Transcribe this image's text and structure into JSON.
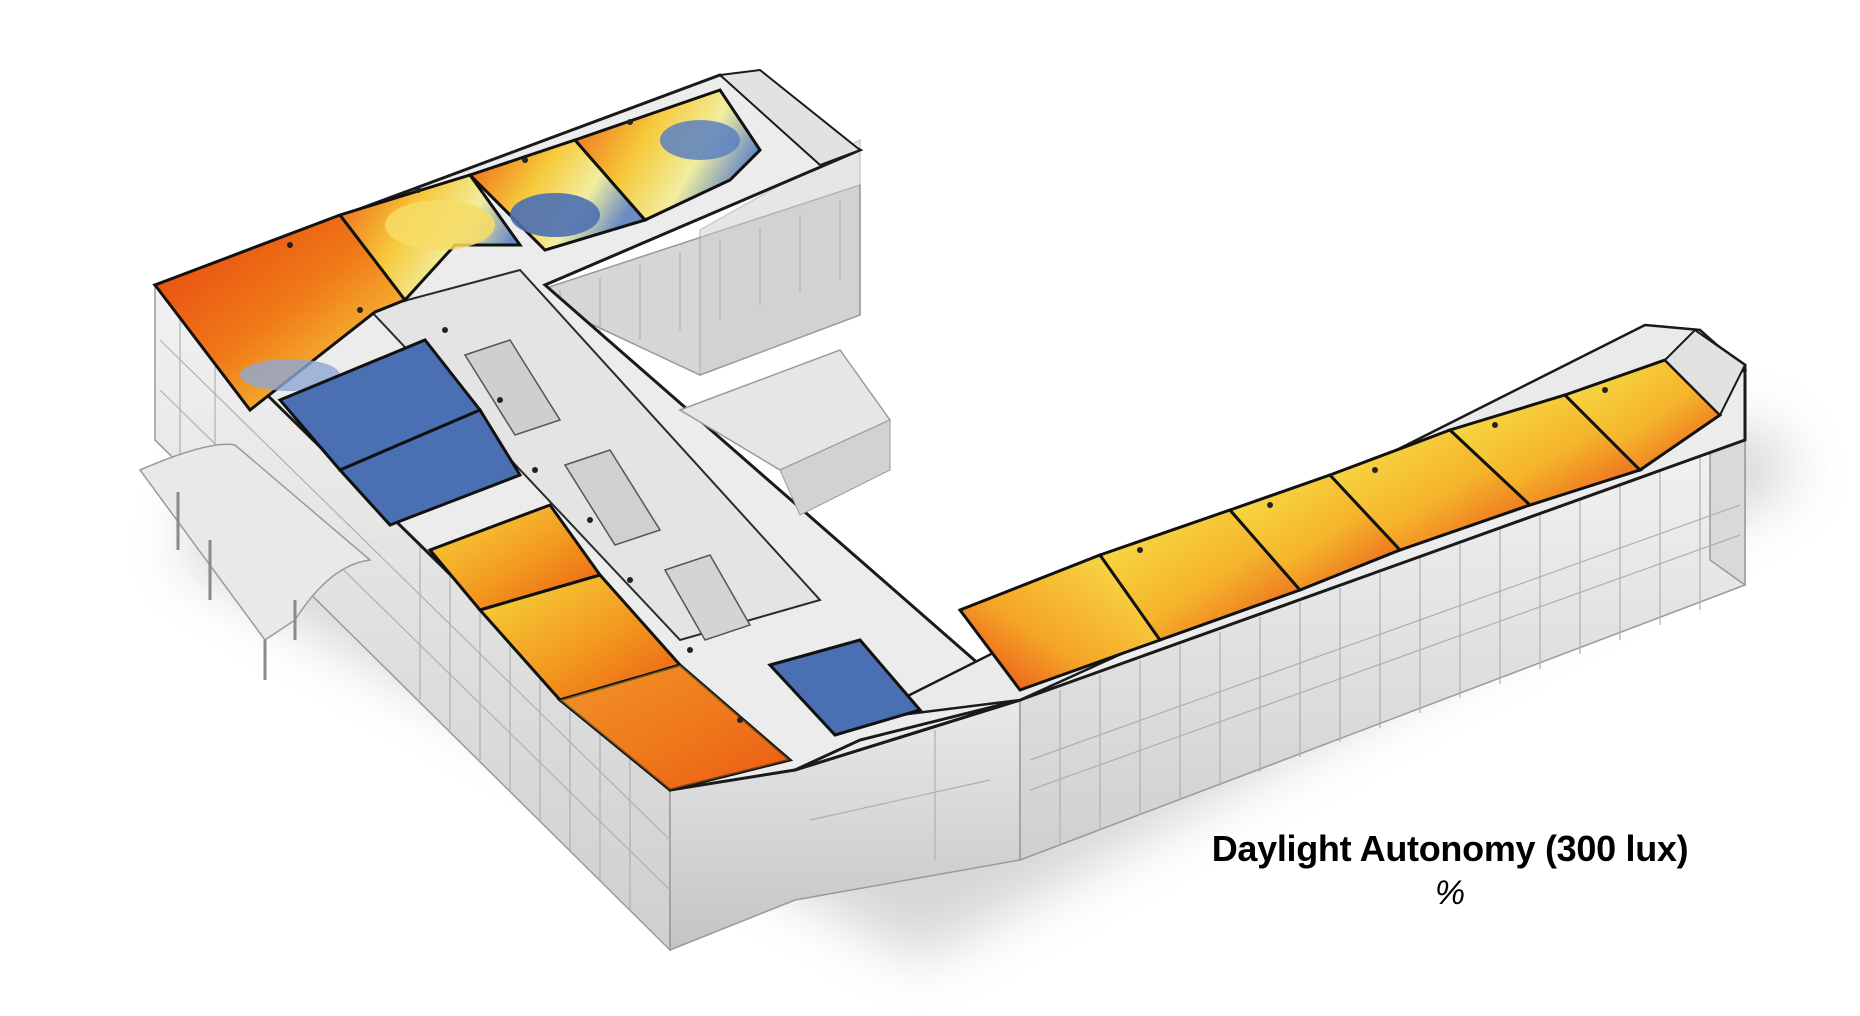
{
  "figure": {
    "description_type": "isometric building daylight simulation",
    "legend": {
      "title": "Daylight Autonomy (300 lux)",
      "unit": "%"
    },
    "colors": {
      "high": "#e5400e",
      "mid_high": "#f39a1f",
      "mid": "#f6d83e",
      "low_mid": "#f3ef9a",
      "low": "#4b6fb3",
      "wall": "#dcdcdc",
      "floor": "#ececec",
      "outline": "#1a1a1a"
    }
  }
}
